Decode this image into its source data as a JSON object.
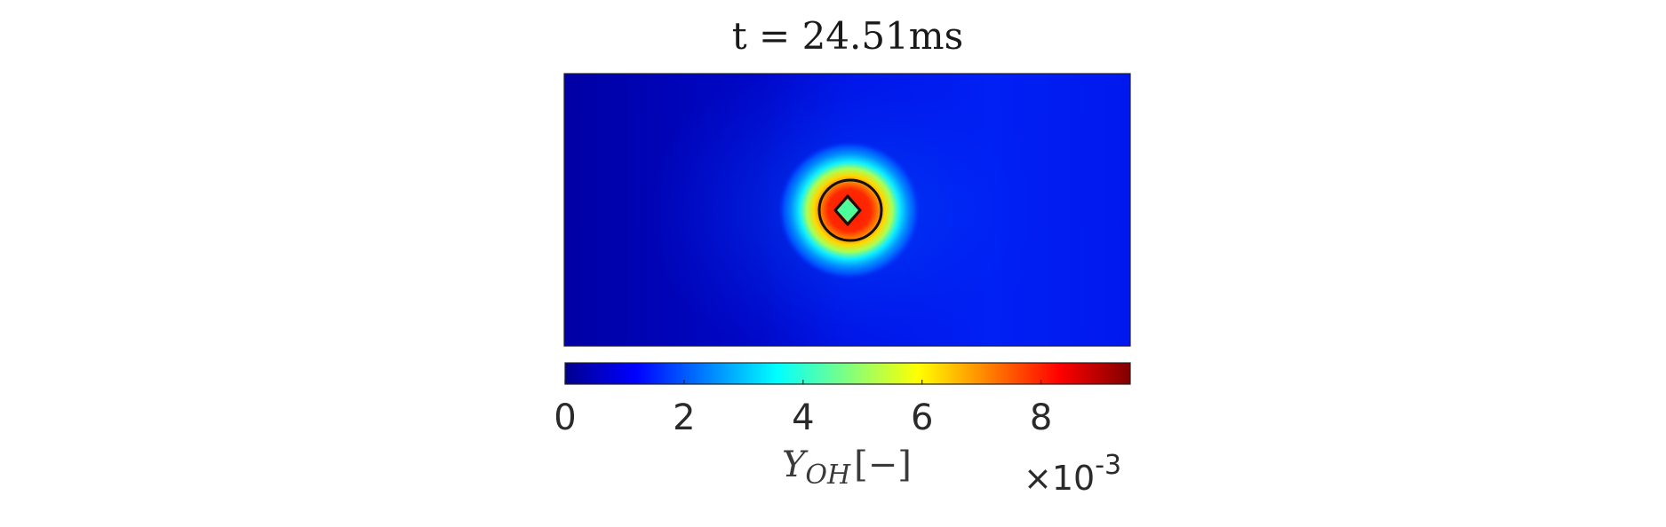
{
  "chart_data": {
    "type": "heatmap",
    "title": "t = 24.51ms",
    "field": {
      "name": "Y_OH",
      "center": [
        0.5,
        0.5
      ],
      "peak_value": 0.0085,
      "inner_value": 0.0044,
      "background_value": 0.0008
    },
    "contours": [
      {
        "shape": "circle",
        "level": "isoline"
      },
      {
        "shape": "diamond",
        "level": "isoline"
      }
    ],
    "colorbar": {
      "colormap": "jet",
      "orientation": "horizontal",
      "range": [
        0,
        9.5
      ],
      "ticks": [
        0,
        2,
        4,
        6,
        8
      ],
      "tick_labels": [
        "0",
        "2",
        "4",
        "6",
        "8"
      ],
      "label_main": "Y",
      "label_sub": "OH",
      "label_units": "[−]",
      "multiplier_prefix": "×10",
      "multiplier_exponent": "-3"
    },
    "colors": {
      "jet": [
        "#00008f",
        "#0000ff",
        "#00ffff",
        "#ffff00",
        "#ff0000",
        "#800000"
      ]
    }
  }
}
